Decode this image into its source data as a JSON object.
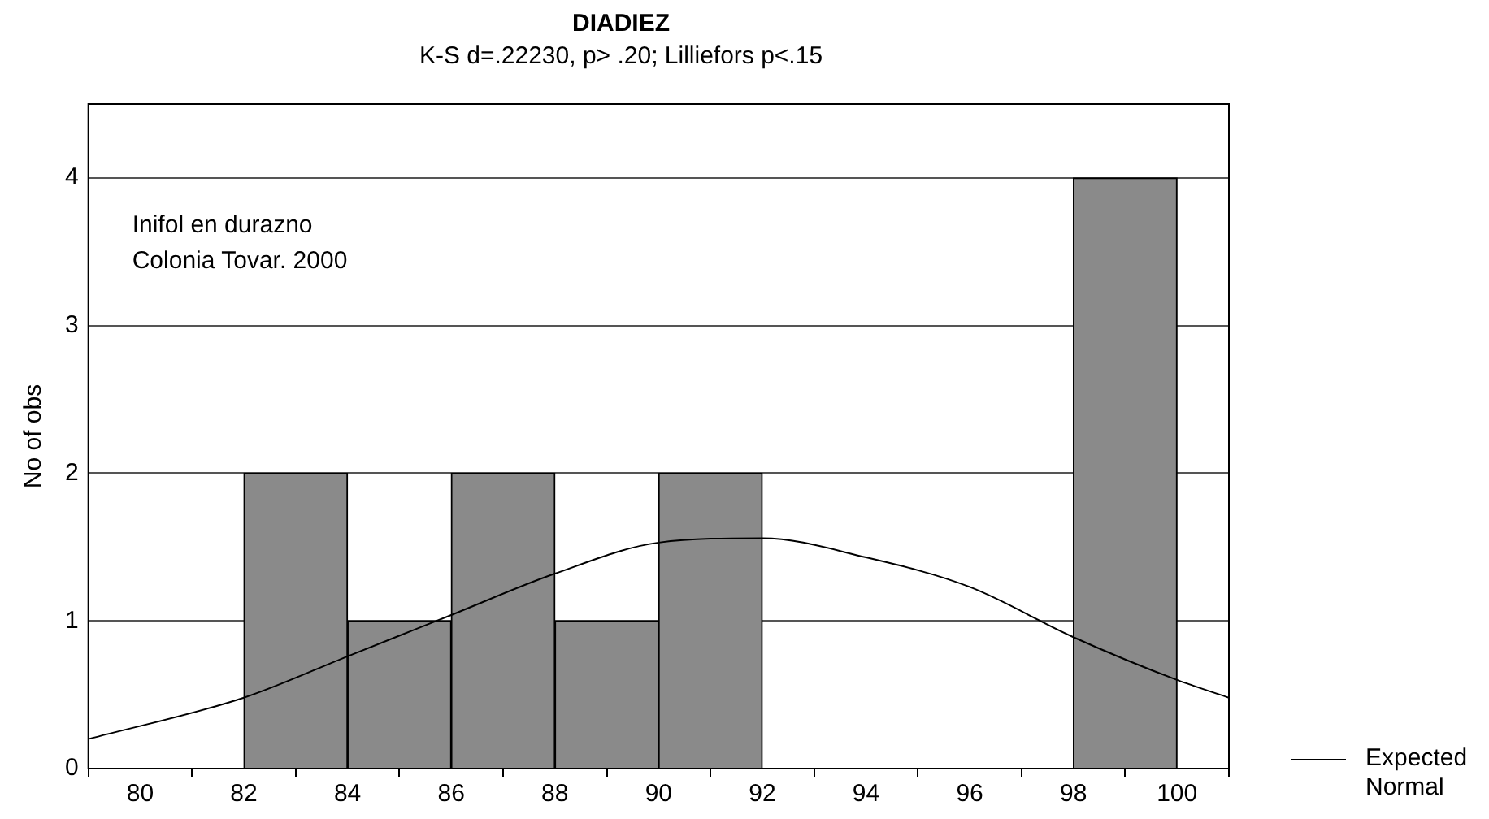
{
  "chart_data": {
    "type": "histogram",
    "title": "DIADIEZ",
    "subtitle": "K-S d=.22230, p> .20; Lilliefors p<.15",
    "ylabel": "No of obs",
    "bins": [
      80,
      82,
      84,
      86,
      88,
      90,
      92,
      94,
      96,
      98,
      100
    ],
    "values": [
      0,
      2,
      1,
      2,
      1,
      2,
      0,
      0,
      0,
      4
    ],
    "color": "#8a8a8a",
    "series": [
      {
        "type": "line",
        "name": "Expected Normal",
        "color": "#000000",
        "x": [
          79,
          82,
          84,
          86,
          88,
          90,
          92,
          94,
          96,
          98,
          100,
          101
        ],
        "values": [
          0.2,
          0.48,
          0.76,
          1.04,
          1.32,
          1.53,
          1.56,
          1.43,
          1.23,
          0.89,
          0.6,
          0.48
        ]
      }
    ],
    "xlim": [
      79,
      101
    ],
    "xticks": [
      80,
      82,
      84,
      86,
      88,
      90,
      92,
      94,
      96,
      98,
      100
    ],
    "ylim": [
      0,
      4.5
    ],
    "yticks": [
      0,
      1,
      2,
      3,
      4
    ],
    "grid": "y",
    "legend": "bottom right",
    "marker": "none",
    "line_style": "solid",
    "annotations": [
      "Inifol en durazno",
      "Colonia Tovar. 2000"
    ]
  }
}
